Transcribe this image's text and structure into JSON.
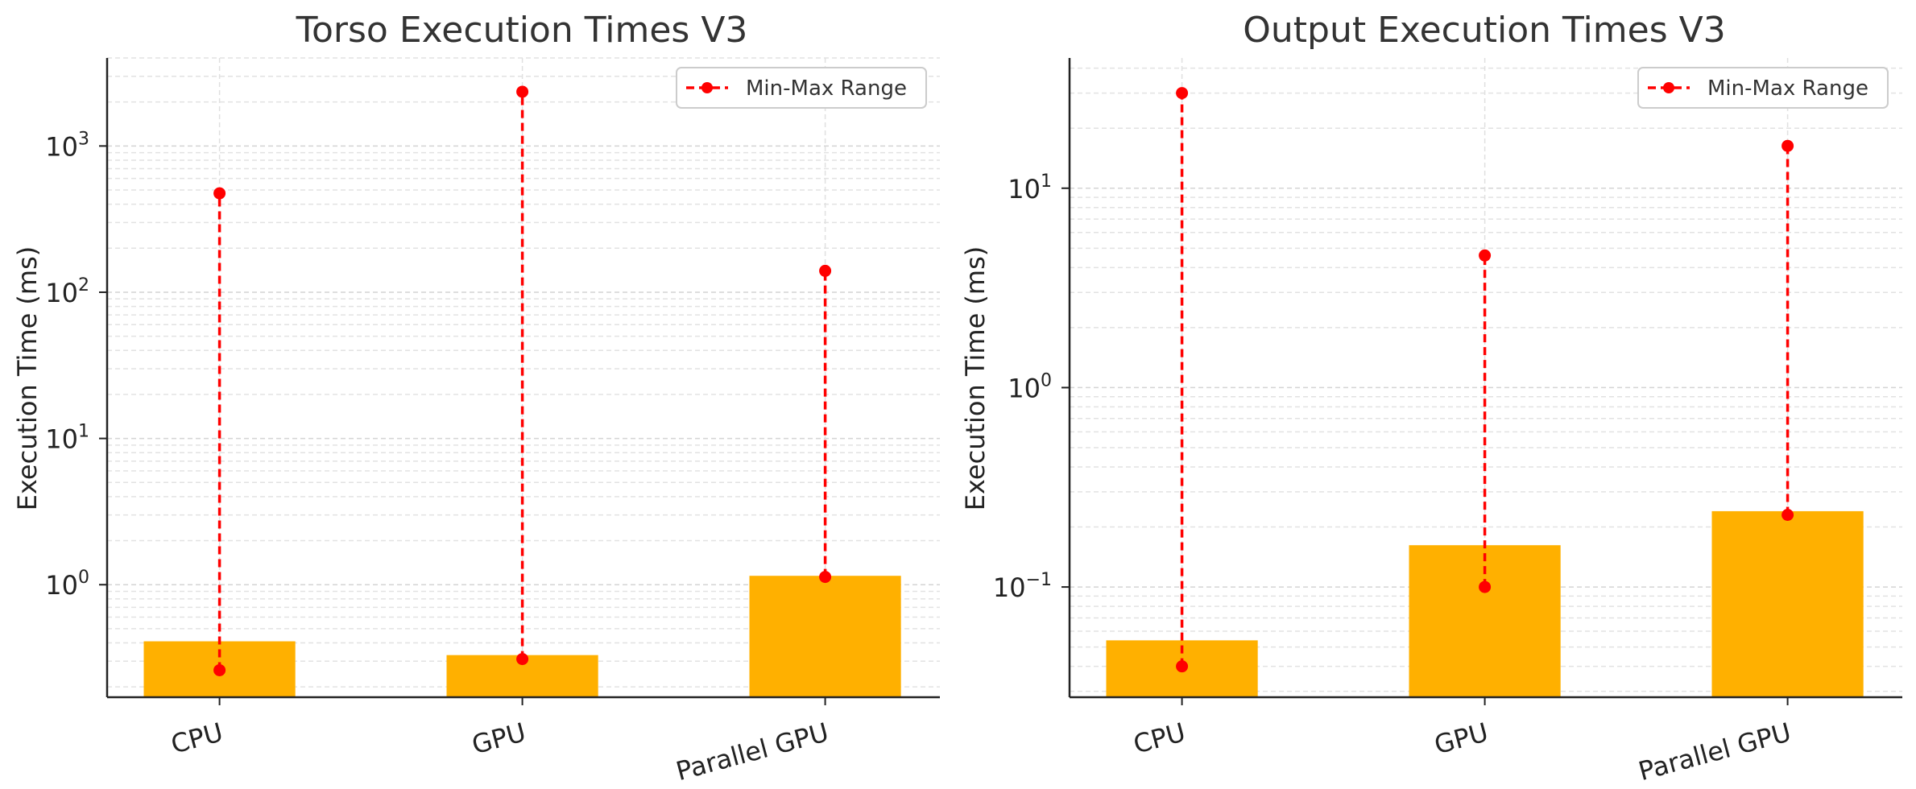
{
  "chart_data": [
    {
      "type": "bar",
      "title": "Torso Execution Times V3",
      "xlabel": "",
      "ylabel": "Execution Time (ms)",
      "yscale": "log",
      "ylim": [
        0.17,
        4000
      ],
      "categories": [
        "CPU",
        "GPU",
        "Parallel GPU"
      ],
      "values": [
        0.41,
        0.33,
        1.15
      ],
      "bar_color": "#FFB000",
      "range_series": {
        "name": "Min-Max Range",
        "color": "#FF0000",
        "min": [
          0.26,
          0.31,
          1.13
        ],
        "max": [
          475,
          2350,
          140
        ]
      },
      "yticks": [
        {
          "base": "10",
          "exp": "0",
          "value": 1
        },
        {
          "base": "10",
          "exp": "1",
          "value": 10
        },
        {
          "base": "10",
          "exp": "2",
          "value": 100
        },
        {
          "base": "10",
          "exp": "3",
          "value": 1000
        }
      ],
      "grid": true,
      "legend": "top-right"
    },
    {
      "type": "bar",
      "title": "Output Execution Times V3",
      "xlabel": "",
      "ylabel": "Execution Time (ms)",
      "yscale": "log",
      "ylim": [
        0.028,
        45
      ],
      "categories": [
        "CPU",
        "GPU",
        "Parallel GPU"
      ],
      "values": [
        0.054,
        0.162,
        0.24
      ],
      "bar_color": "#FFB000",
      "range_series": {
        "name": "Min-Max Range",
        "color": "#FF0000",
        "min": [
          0.04,
          0.1,
          0.23
        ],
        "max": [
          30,
          4.6,
          16.3
        ]
      },
      "yticks": [
        {
          "base": "10",
          "exp": "−1",
          "value": 0.1
        },
        {
          "base": "10",
          "exp": "0",
          "value": 1
        },
        {
          "base": "10",
          "exp": "1",
          "value": 10
        }
      ],
      "grid": true,
      "legend": "top-right"
    }
  ]
}
